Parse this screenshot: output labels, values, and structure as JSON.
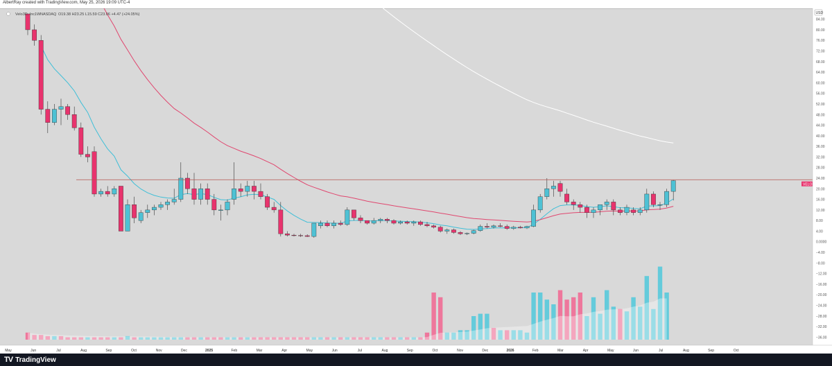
{
  "header": {
    "credit": "AlbertRay created with TradingView.com, May 25, 2026 19:09 UTC-4"
  },
  "footer": {
    "brand": "TradingView",
    "logo_icon": "tradingview-logo-icon"
  },
  "colors": {
    "up": "#4ec1d4",
    "down": "#e8336d",
    "volume_up": "#57c9da",
    "volume_down": "#f06b95",
    "ema_fast": "#3fbfd8",
    "ema_mid": "#e0476f",
    "ma_long": "#ffffff",
    "price_line": "#b4554f",
    "background": "#d9d9d9"
  },
  "chart_data": {
    "type": "candlestick",
    "legend": {
      "symbol_name": "Velo3D, Inc.",
      "interval": "1W",
      "exchange": "NASDAQ",
      "ohlc_text": "O19.38 H23.25 L15.59 C23.06 +4.47 (+24.05%)"
    },
    "currency": "USD",
    "ylim": [
      -38,
      86
    ],
    "y_ticks": [
      "84.00",
      "80.00",
      "76.00",
      "72.00",
      "68.00",
      "64.00",
      "60.00",
      "56.00",
      "52.00",
      "48.00",
      "44.00",
      "40.00",
      "36.00",
      "32.00",
      "28.00",
      "24.00",
      "20.00",
      "16.00",
      "12.00",
      "8.00",
      "4.00",
      "0.0000",
      "−4.00",
      "−8.00",
      "−12.00",
      "−16.00",
      "−20.00",
      "−24.00",
      "−28.00",
      "−32.00",
      "−36.00"
    ],
    "x_ticks": [
      "May",
      "Jun",
      "Jul",
      "Aug",
      "Sep",
      "Oct",
      "Nov",
      "Dec",
      "2025",
      "Feb",
      "Mar",
      "Apr",
      "May",
      "Jun",
      "Jul",
      "Aug",
      "Sep",
      "Oct",
      "Nov",
      "Dec",
      "2026",
      "Feb",
      "Mar",
      "Apr",
      "May",
      "Jun",
      "Jul",
      "Aug",
      "Sep",
      "Oct"
    ],
    "horizontal_line": {
      "value": 23.41,
      "label": "23.41"
    },
    "last_price": {
      "symbol": "VELO",
      "value": "23.06"
    },
    "candles": [
      [
        86,
        88,
        78,
        80
      ],
      [
        80,
        82,
        74,
        76
      ],
      [
        76,
        78,
        48,
        50
      ],
      [
        50,
        53,
        41,
        45
      ],
      [
        45,
        52,
        44,
        50
      ],
      [
        50,
        54,
        44,
        51
      ],
      [
        51,
        52,
        46,
        48
      ],
      [
        48,
        51,
        42,
        43
      ],
      [
        43,
        45,
        32,
        33
      ],
      [
        33,
        36,
        30,
        32
      ],
      [
        34,
        36,
        17,
        18
      ],
      [
        18,
        20,
        17,
        19
      ],
      [
        19,
        21,
        17,
        18
      ],
      [
        18,
        21,
        17,
        20
      ],
      [
        21,
        21,
        4,
        4
      ],
      [
        4,
        16,
        4,
        14
      ],
      [
        14,
        17,
        7,
        9
      ],
      [
        8,
        12,
        7,
        11
      ],
      [
        11,
        14,
        9,
        12
      ],
      [
        12,
        14,
        10,
        13
      ],
      [
        13,
        15,
        12,
        14
      ],
      [
        14,
        16,
        12,
        15
      ],
      [
        15,
        20,
        14,
        16
      ],
      [
        16,
        30,
        15,
        24
      ],
      [
        24,
        26,
        18,
        20
      ],
      [
        20,
        26,
        14,
        16
      ],
      [
        16,
        22,
        14,
        20
      ],
      [
        20,
        22,
        14,
        16
      ],
      [
        16,
        18,
        10,
        12
      ],
      [
        12,
        14,
        8,
        12
      ],
      [
        12,
        16,
        10,
        15
      ],
      [
        16,
        30,
        14,
        20
      ],
      [
        20,
        22,
        17,
        19
      ],
      [
        19,
        23,
        17,
        21
      ],
      [
        21,
        23,
        16,
        19
      ],
      [
        19,
        22,
        16,
        17
      ],
      [
        17,
        18,
        12,
        13
      ],
      [
        13,
        15,
        11,
        12
      ],
      [
        12,
        15,
        2,
        3
      ],
      [
        3,
        4,
        2,
        2.5
      ],
      [
        2.5,
        3,
        2,
        2.4
      ],
      [
        2.4,
        3,
        1.8,
        2.3
      ],
      [
        2.3,
        2.8,
        1.8,
        2
      ],
      [
        2,
        7,
        1.5,
        7
      ],
      [
        6,
        8,
        5,
        7
      ],
      [
        7,
        8,
        5.5,
        6
      ],
      [
        6,
        8,
        5,
        7
      ],
      [
        7,
        8,
        6,
        6.5
      ],
      [
        6.5,
        13,
        6,
        12
      ],
      [
        12,
        12,
        8,
        9
      ],
      [
        9,
        10,
        7,
        8
      ],
      [
        8,
        8,
        6.5,
        7
      ],
      [
        7,
        9,
        6.5,
        8
      ],
      [
        8,
        9,
        7,
        8.5
      ],
      [
        8.5,
        9,
        7,
        8
      ],
      [
        8,
        8.5,
        6.5,
        7
      ],
      [
        7,
        8,
        6.5,
        7.5
      ],
      [
        7.5,
        8,
        6.5,
        7
      ],
      [
        7,
        8,
        6,
        7.5
      ],
      [
        7.5,
        8,
        6,
        6.5
      ],
      [
        6.5,
        7.5,
        5.5,
        6
      ],
      [
        6,
        6.5,
        5,
        5.5
      ],
      [
        5.5,
        6,
        3.5,
        4
      ],
      [
        4,
        5,
        3,
        4.5
      ],
      [
        4.5,
        5,
        3,
        3.5
      ],
      [
        3.5,
        4,
        2.5,
        3
      ],
      [
        3,
        3.5,
        2.5,
        3.2
      ],
      [
        3.2,
        4.5,
        2.8,
        4.2
      ],
      [
        4.2,
        6.5,
        3.8,
        5.8
      ],
      [
        5.8,
        7,
        5,
        5.5
      ],
      [
        5.5,
        6.5,
        5,
        6
      ],
      [
        6,
        7,
        5.5,
        5.8
      ],
      [
        5.8,
        6.5,
        4.5,
        5
      ],
      [
        5,
        6,
        4.5,
        5.5
      ],
      [
        5.5,
        6,
        5,
        5.2
      ],
      [
        5.2,
        6,
        4.8,
        5.8
      ],
      [
        5.8,
        14,
        5.5,
        12
      ],
      [
        12,
        18,
        11,
        17
      ],
      [
        17,
        24,
        16,
        20
      ],
      [
        20,
        23,
        17,
        21
      ],
      [
        22,
        23,
        17,
        19
      ],
      [
        18,
        20,
        14,
        15
      ],
      [
        15,
        16,
        12,
        14
      ],
      [
        14,
        15,
        11,
        13
      ],
      [
        13,
        14,
        9,
        11
      ],
      [
        11,
        13,
        9,
        12
      ],
      [
        12,
        14,
        10,
        14
      ],
      [
        14,
        16,
        12,
        15
      ],
      [
        15,
        16,
        10,
        12
      ],
      [
        12,
        13,
        10,
        11
      ],
      [
        11,
        14,
        10,
        13
      ],
      [
        12,
        13,
        10,
        11
      ],
      [
        11,
        13,
        10,
        12
      ],
      [
        12,
        20,
        11,
        18
      ],
      [
        18,
        19,
        13,
        14
      ],
      [
        14,
        15,
        12,
        14
      ],
      [
        14,
        20,
        13,
        19
      ],
      [
        19,
        23.25,
        15.59,
        23.06
      ]
    ],
    "volume": [
      [
        3,
        0
      ],
      [
        2,
        0
      ],
      [
        2,
        0
      ],
      [
        1.5,
        0
      ],
      [
        1.5,
        1
      ],
      [
        1.5,
        0
      ],
      [
        1,
        0
      ],
      [
        1,
        0
      ],
      [
        1,
        0
      ],
      [
        1,
        1
      ],
      [
        1,
        0
      ],
      [
        1,
        0
      ],
      [
        1,
        0
      ],
      [
        1,
        1
      ],
      [
        1,
        0
      ],
      [
        1.5,
        1
      ],
      [
        1,
        0
      ],
      [
        1,
        1
      ],
      [
        1,
        1
      ],
      [
        1,
        1
      ],
      [
        1,
        1
      ],
      [
        1,
        1
      ],
      [
        1,
        1
      ],
      [
        1,
        1
      ],
      [
        1,
        0
      ],
      [
        1,
        0
      ],
      [
        1,
        1
      ],
      [
        1,
        0
      ],
      [
        1,
        0
      ],
      [
        1,
        0
      ],
      [
        1,
        1
      ],
      [
        1,
        1
      ],
      [
        1,
        0
      ],
      [
        1,
        1
      ],
      [
        1,
        0
      ],
      [
        1,
        0
      ],
      [
        1,
        0
      ],
      [
        1,
        0
      ],
      [
        1,
        0
      ],
      [
        1,
        0
      ],
      [
        1,
        0
      ],
      [
        1,
        0
      ],
      [
        1,
        0
      ],
      [
        1,
        1
      ],
      [
        1,
        1
      ],
      [
        1,
        0
      ],
      [
        1,
        1
      ],
      [
        1,
        0
      ],
      [
        1,
        1
      ],
      [
        1,
        0
      ],
      [
        1,
        0
      ],
      [
        1,
        0
      ],
      [
        1,
        1
      ],
      [
        1,
        1
      ],
      [
        1,
        0
      ],
      [
        1,
        0
      ],
      [
        1,
        1
      ],
      [
        1,
        0
      ],
      [
        1,
        1
      ],
      [
        1,
        0
      ],
      [
        3,
        0
      ],
      [
        20,
        0
      ],
      [
        18,
        0
      ],
      [
        3,
        1
      ],
      [
        3,
        1
      ],
      [
        4,
        1
      ],
      [
        4,
        1
      ],
      [
        10,
        1
      ],
      [
        11,
        1
      ],
      [
        11,
        1
      ],
      [
        5,
        0
      ],
      [
        4,
        1
      ],
      [
        4,
        0
      ],
      [
        4,
        1
      ],
      [
        4,
        1
      ],
      [
        3,
        1
      ],
      [
        20,
        1
      ],
      [
        20,
        1
      ],
      [
        17,
        1
      ],
      [
        15,
        1
      ],
      [
        21,
        0
      ],
      [
        17,
        0
      ],
      [
        18,
        0
      ],
      [
        20,
        0
      ],
      [
        10,
        1
      ],
      [
        18,
        1
      ],
      [
        11,
        1
      ],
      [
        21,
        1
      ],
      [
        14,
        1
      ],
      [
        13,
        0
      ],
      [
        12,
        1
      ],
      [
        18,
        1
      ],
      [
        14,
        1
      ],
      [
        27,
        1
      ],
      [
        13,
        1
      ],
      [
        31,
        1
      ],
      [
        20,
        1
      ]
    ]
  }
}
